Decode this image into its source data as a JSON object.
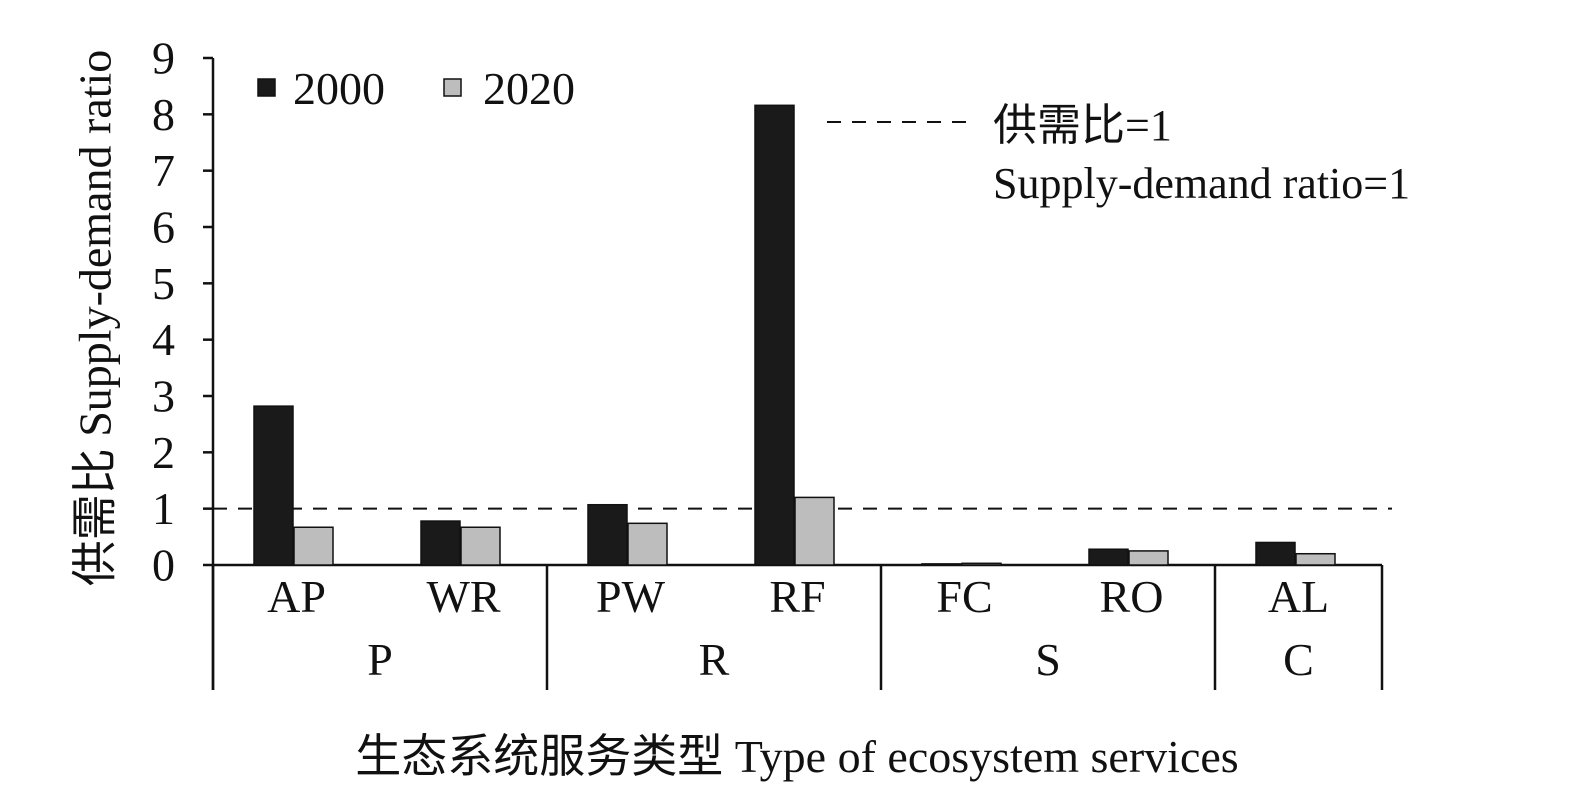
{
  "chart_data": {
    "type": "bar",
    "ylabel": "供需比 Supply-demand ratio",
    "xlabel": "生态系统服务类型 Type of ecosystem services",
    "ylim": [
      0,
      9
    ],
    "yticks": [
      "0",
      "1",
      "2",
      "3",
      "4",
      "5",
      "6",
      "7",
      "8",
      "9"
    ],
    "categories": [
      "AP",
      "WR",
      "PW",
      "RF",
      "FC",
      "RO",
      "AL"
    ],
    "groups": [
      {
        "label": "P",
        "categories": [
          "AP",
          "WR"
        ]
      },
      {
        "label": "R",
        "categories": [
          "PW",
          "RF"
        ]
      },
      {
        "label": "S",
        "categories": [
          "FC",
          "RO"
        ]
      },
      {
        "label": "C",
        "categories": [
          "AL"
        ]
      }
    ],
    "series": [
      {
        "name": "2000",
        "color": "#1a1a1a",
        "values": [
          2.82,
          0.78,
          1.07,
          8.16,
          0.02,
          0.28,
          0.4
        ]
      },
      {
        "name": "2020",
        "color": "#bdbdbd",
        "values": [
          0.67,
          0.67,
          0.74,
          1.2,
          0.03,
          0.25,
          0.2
        ]
      }
    ],
    "reference_line": {
      "value": 1,
      "style": "dashed",
      "label_line1": "供需比=1",
      "label_line2": "Supply-demand ratio=1"
    },
    "legend": {
      "position": "top-left"
    },
    "grid": false
  }
}
